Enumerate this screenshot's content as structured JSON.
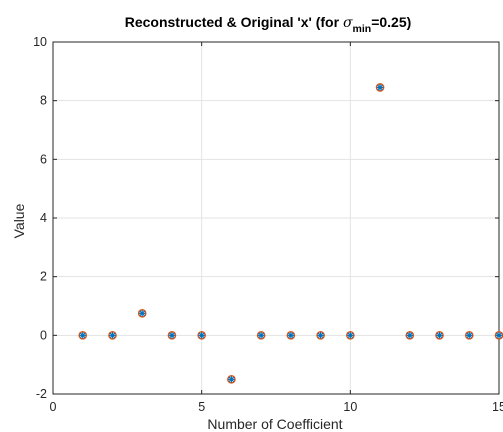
{
  "chart_data": {
    "type": "scatter",
    "title": {
      "prefix": "Reconstructed & Original 'x' (for ",
      "symbol": "σ",
      "subscript": "min",
      "suffix": "=0.25)"
    },
    "xlabel": "Number of Coefficient",
    "ylabel": "Value",
    "xlim": [
      0,
      15
    ],
    "ylim": [
      -2,
      10
    ],
    "xticks": [
      "0",
      "5",
      "10",
      "15"
    ],
    "yticks": [
      "-2",
      "0",
      "2",
      "4",
      "6",
      "8",
      "10"
    ],
    "grid": true,
    "series": [
      {
        "marker": "circle",
        "color": "#D95319",
        "x": [
          1,
          2,
          3,
          4,
          5,
          6,
          7,
          8,
          9,
          10,
          11,
          12,
          13,
          14,
          15
        ],
        "y": [
          0,
          0,
          0.75,
          0,
          0,
          -1.5,
          0,
          0,
          0,
          0,
          8.45,
          0,
          0,
          0,
          0
        ]
      },
      {
        "marker": "asterisk",
        "color": "#0072BD",
        "x": [
          1,
          2,
          3,
          4,
          5,
          6,
          7,
          8,
          9,
          10,
          11,
          12,
          13,
          14,
          15
        ],
        "y": [
          0,
          0,
          0.75,
          0,
          0,
          -1.5,
          0,
          0,
          0,
          0,
          8.45,
          0,
          0,
          0,
          0
        ]
      }
    ]
  }
}
